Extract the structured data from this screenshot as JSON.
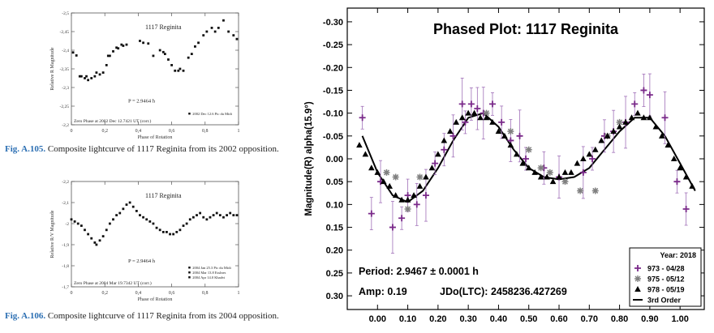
{
  "chart_data": [
    {
      "type": "scatter",
      "title": "1117 Reginita",
      "ylabel": "Relative R Magnitude",
      "xlabel": "Phase of Rotation",
      "xlim": [
        0,
        1
      ],
      "ylim": [
        -2.5,
        -2.2
      ],
      "y_inverted": true,
      "xticks": [
        "0",
        "0,2",
        "0,4",
        "0,6",
        "0,8",
        "1"
      ],
      "yticks": [
        "-2,5",
        "-2,45",
        "-2,4",
        "-2,35",
        "-2,3",
        "-2,25",
        "-2,2"
      ],
      "period_text": "P = 2.9464 h",
      "zero_phase_text": "Zero Phase at 2002 Dec 12.7421 UT (corr.)",
      "legend": [
        "2002 Dec 12.6 Pic du Midi"
      ],
      "series": [
        {
          "name": "2002 Dec 12.6 Pic du Midi",
          "x": [
            0.01,
            0.03,
            0.05,
            0.06,
            0.08,
            0.09,
            0.1,
            0.12,
            0.14,
            0.15,
            0.17,
            0.19,
            0.21,
            0.22,
            0.23,
            0.25,
            0.27,
            0.28,
            0.3,
            0.31,
            0.33,
            0.41,
            0.43,
            0.46,
            0.49,
            0.53,
            0.55,
            0.56,
            0.58,
            0.6,
            0.62,
            0.64,
            0.65,
            0.67,
            0.7,
            0.72,
            0.74,
            0.76,
            0.79,
            0.81,
            0.84,
            0.86,
            0.88,
            0.91,
            0.94,
            0.97,
            0.99
          ],
          "y": [
            -2.394,
            -2.386,
            -2.33,
            -2.33,
            -2.325,
            -2.33,
            -2.32,
            -2.325,
            -2.33,
            -2.34,
            -2.335,
            -2.34,
            -2.36,
            -2.385,
            -2.385,
            -2.397,
            -2.407,
            -2.405,
            -2.415,
            -2.412,
            -2.415,
            -2.425,
            -2.42,
            -2.418,
            -2.385,
            -2.4,
            -2.395,
            -2.39,
            -2.375,
            -2.36,
            -2.345,
            -2.345,
            -2.35,
            -2.345,
            -2.38,
            -2.39,
            -2.41,
            -2.42,
            -2.44,
            -2.45,
            -2.46,
            -2.45,
            -2.46,
            -2.48,
            -2.45,
            -2.44,
            -2.43
          ]
        }
      ]
    },
    {
      "type": "scatter",
      "title": "1117 Reginita",
      "ylabel": "Relative R/V Magnitude",
      "xlabel": "Phase of Rotation",
      "xlim": [
        0,
        1
      ],
      "ylim": [
        -2.2,
        -1.7
      ],
      "y_inverted": true,
      "xticks": [
        "0",
        "0,2",
        "0,4",
        "0,6",
        "0,8",
        "1"
      ],
      "yticks": [
        "-2,2",
        "-2,1",
        "-2",
        "-1,9",
        "-1,8",
        "-1,7"
      ],
      "period_text": "P = 2.9464 h",
      "zero_phase_text": "Zero Phase at 2004 Mar 19.7342 UT (corr.)",
      "legend": [
        "2004 Jan 25.3 Pic du Midi",
        "2004 Mar 13.8 Esslnes",
        "2004 Apr 14.0 Khadvi"
      ],
      "series": [
        {
          "name": "2004 Jan 25.3 Pic du Midi",
          "x": [
            0.0,
            0.02,
            0.04,
            0.06,
            0.08,
            0.1,
            0.12,
            0.14,
            0.15,
            0.17,
            0.19,
            0.21,
            0.23,
            0.25,
            0.27,
            0.29,
            0.31,
            0.33,
            0.35,
            0.37,
            0.39,
            0.41,
            0.43,
            0.45,
            0.47,
            0.49,
            0.51,
            0.53,
            0.55,
            0.57,
            0.59,
            0.61,
            0.63,
            0.65,
            0.67,
            0.69,
            0.71,
            0.73,
            0.75,
            0.77,
            0.79,
            0.81,
            0.83,
            0.85,
            0.87,
            0.89,
            0.91,
            0.93,
            0.95,
            0.97,
            0.99
          ],
          "y": [
            -2.02,
            -2.01,
            -2.0,
            -1.99,
            -1.97,
            -1.95,
            -1.93,
            -1.91,
            -1.9,
            -1.92,
            -1.94,
            -1.97,
            -2.0,
            -2.02,
            -2.04,
            -2.05,
            -2.07,
            -2.09,
            -2.1,
            -2.08,
            -2.06,
            -2.04,
            -2.03,
            -2.02,
            -2.01,
            -2.0,
            -1.98,
            -1.97,
            -1.96,
            -1.96,
            -1.95,
            -1.95,
            -1.96,
            -1.97,
            -1.99,
            -2.0,
            -2.02,
            -2.03,
            -2.04,
            -2.05,
            -2.03,
            -2.02,
            -2.03,
            -2.04,
            -2.05,
            -2.04,
            -2.03,
            -2.04,
            -2.05,
            -2.04,
            -2.04
          ]
        }
      ]
    },
    {
      "type": "scatter",
      "title": "Phased Plot: 1117 Reginita",
      "ylabel": "Magnitude(R) alpha(15.9°)",
      "xlabel": "",
      "xlim": [
        -0.1,
        1.08
      ],
      "ylim": [
        -0.33,
        0.33
      ],
      "y_inverted": true,
      "xticks": [
        "0.00",
        "0.10",
        "0.20",
        "0.30",
        "0.40",
        "0.50",
        "0.60",
        "0.70",
        "0.80",
        "0.90",
        "1.00"
      ],
      "yticks": [
        "-0.30",
        "-0.25",
        "-0.20",
        "-0.15",
        "-0.10",
        "-0.05",
        "0.00",
        "0.05",
        "0.10",
        "0.15",
        "0.20",
        "0.25",
        "0.30"
      ],
      "period_text": "Period: 2.9467 ± 0.0001 h",
      "amp_text": "Amp: 0.19",
      "jdo_text": "JDo(LTC): 2458236.427269",
      "legend_title": "Year: 2018",
      "legend": [
        "973 - 04/28",
        "975 - 05/12",
        "978 - 05/19",
        "3rd Order"
      ],
      "colors": {
        "s973": "#7a2a8a",
        "s975": "#808080",
        "s978": "#000000",
        "fit": "#000000",
        "errbar": "#a070b8"
      },
      "series": [
        {
          "name": "973 - 04/28",
          "marker": "plus",
          "x": [
            -0.05,
            -0.02,
            0.01,
            0.05,
            0.08,
            0.1,
            0.13,
            0.16,
            0.19,
            0.22,
            0.25,
            0.28,
            0.29,
            0.31,
            0.33,
            0.35,
            0.38,
            0.41,
            0.44,
            0.47,
            0.49,
            0.55,
            0.6,
            0.68,
            0.71,
            0.75,
            0.78,
            0.82,
            0.85,
            0.88,
            0.9,
            0.95,
            0.99,
            1.02
          ],
          "y": [
            -0.09,
            0.12,
            0.05,
            0.15,
            0.13,
            0.08,
            0.1,
            0.08,
            0.01,
            -0.02,
            -0.05,
            -0.12,
            -0.08,
            -0.12,
            -0.11,
            -0.1,
            -0.12,
            -0.08,
            -0.04,
            -0.05,
            0.0,
            0.02,
            0.04,
            0.03,
            0.0,
            -0.05,
            -0.06,
            -0.08,
            -0.12,
            -0.15,
            -0.14,
            -0.09,
            0.05,
            0.11
          ]
        },
        {
          "name": "975 - 05/12",
          "marker": "asterisk",
          "x": [
            0.03,
            0.06,
            0.1,
            0.14,
            0.36,
            0.44,
            0.5,
            0.54,
            0.57,
            0.62,
            0.67,
            0.72,
            0.76,
            0.8
          ],
          "y": [
            0.03,
            0.04,
            0.11,
            0.04,
            -0.1,
            -0.06,
            -0.02,
            0.02,
            0.03,
            0.05,
            0.07,
            0.07,
            -0.05,
            -0.08
          ]
        },
        {
          "name": "978 - 05/19",
          "marker": "triangle",
          "x": [
            -0.06,
            -0.04,
            -0.02,
            0.0,
            0.02,
            0.04,
            0.06,
            0.08,
            0.1,
            0.12,
            0.14,
            0.16,
            0.18,
            0.2,
            0.22,
            0.24,
            0.26,
            0.28,
            0.3,
            0.32,
            0.34,
            0.36,
            0.38,
            0.4,
            0.42,
            0.44,
            0.46,
            0.48,
            0.5,
            0.52,
            0.54,
            0.56,
            0.58,
            0.6,
            0.62,
            0.64,
            0.66,
            0.68,
            0.7,
            0.72,
            0.74,
            0.76,
            0.78,
            0.8,
            0.82,
            0.84,
            0.86,
            0.88,
            0.9,
            0.92,
            0.94,
            0.96,
            0.98,
            1.0,
            1.02,
            1.04
          ],
          "y": [
            -0.03,
            -0.01,
            0.02,
            0.03,
            0.05,
            0.06,
            0.08,
            0.09,
            0.09,
            0.08,
            0.06,
            0.04,
            0.02,
            -0.01,
            -0.04,
            -0.06,
            -0.08,
            -0.09,
            -0.1,
            -0.1,
            -0.09,
            -0.09,
            -0.08,
            -0.06,
            -0.05,
            -0.03,
            -0.01,
            0.01,
            0.02,
            0.03,
            0.04,
            0.04,
            0.05,
            0.04,
            0.03,
            0.03,
            0.01,
            0.0,
            -0.01,
            -0.02,
            -0.04,
            -0.05,
            -0.06,
            -0.07,
            -0.08,
            -0.09,
            -0.1,
            -0.09,
            -0.09,
            -0.07,
            -0.05,
            -0.03,
            0.0,
            0.02,
            0.04,
            0.06
          ]
        },
        {
          "name": "3rd Order",
          "marker": "line",
          "x": [
            -0.05,
            0.0,
            0.05,
            0.1,
            0.15,
            0.2,
            0.25,
            0.3,
            0.35,
            0.4,
            0.45,
            0.5,
            0.55,
            0.6,
            0.65,
            0.7,
            0.75,
            0.8,
            0.85,
            0.9,
            0.95,
            1.0,
            1.05
          ],
          "y": [
            -0.05,
            0.03,
            0.08,
            0.095,
            0.07,
            0.02,
            -0.04,
            -0.09,
            -0.1,
            -0.07,
            -0.02,
            0.02,
            0.04,
            0.045,
            0.04,
            0.02,
            -0.02,
            -0.06,
            -0.09,
            -0.09,
            -0.05,
            0.01,
            0.07
          ]
        }
      ]
    }
  ],
  "captions": [
    {
      "fig": "Fig. A.105.",
      "text": "Composite lightcurve of 1117 Reginita from its 2002 opposition."
    },
    {
      "fig": "Fig. A.106.",
      "text": "Composite lightcurve of 1117 Reginita from its 2004 opposition."
    }
  ]
}
